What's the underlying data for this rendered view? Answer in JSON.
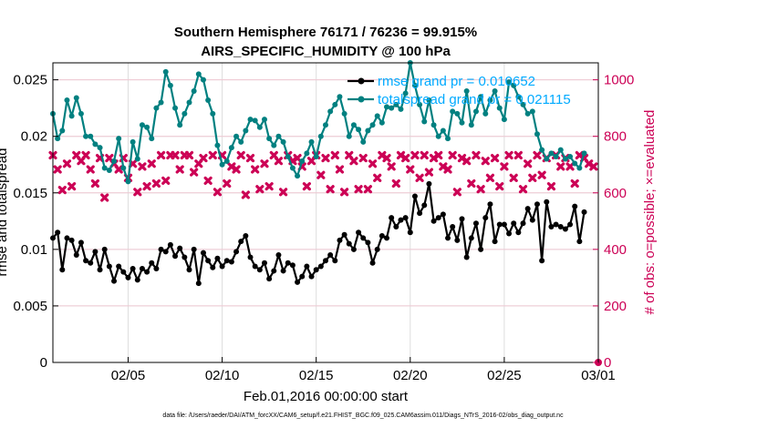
{
  "chart_data": {
    "type": "line",
    "title": [
      "Southern Hemisphere 76171 / 76236 = 99.915%",
      "AIRS_SPECIFIC_HUMIDITY @ 100 hPa"
    ],
    "xlabel": "Feb.01,2016 00:00:00 start",
    "ylabel_left": "rmse and totalspread",
    "ylabel_right": "# of obs: o=possible; ×=evaluated",
    "footer": "data file: /Users/raeder/DAI/ATM_forcXX/CAM6_setup/f.e21.FHIST_BGC.f09_025.CAM6assim.011/Diags_NTrS_2016-02/obs_diag_output.nc",
    "x_domain": [
      1.0,
      30.0
    ],
    "x_ticks": [
      {
        "x": 5,
        "label": "02/05"
      },
      {
        "x": 10,
        "label": "02/10"
      },
      {
        "x": 15,
        "label": "02/15"
      },
      {
        "x": 20,
        "label": "02/20"
      },
      {
        "x": 25,
        "label": "02/25"
      },
      {
        "x": 30,
        "label": "03/01"
      }
    ],
    "ylim_left": [
      0,
      0.0265
    ],
    "yticks_left": [
      {
        "v": 0,
        "label": "0"
      },
      {
        "v": 0.005,
        "label": "0.005"
      },
      {
        "v": 0.01,
        "label": "0.01"
      },
      {
        "v": 0.015,
        "label": "0.015"
      },
      {
        "v": 0.02,
        "label": "0.02"
      },
      {
        "v": 0.025,
        "label": "0.025"
      }
    ],
    "ylim_right": [
      0,
      1060
    ],
    "yticks_right": [
      {
        "v": 0,
        "label": "0"
      },
      {
        "v": 200,
        "label": "200"
      },
      {
        "v": 400,
        "label": "400"
      },
      {
        "v": 600,
        "label": "600"
      },
      {
        "v": 800,
        "label": "800"
      },
      {
        "v": 1000,
        "label": "1000"
      }
    ],
    "grid": true,
    "legend_position": "top-right",
    "series": [
      {
        "name": "rmse grand pr = 0.010652",
        "color": "#000000",
        "marker": "filled-circle",
        "points": [
          [
            1.0,
            0.011
          ],
          [
            1.25,
            0.0115
          ],
          [
            1.5,
            0.0082
          ],
          [
            1.75,
            0.011
          ],
          [
            2.0,
            0.0108
          ],
          [
            2.25,
            0.0095
          ],
          [
            2.5,
            0.0106
          ],
          [
            2.75,
            0.009
          ],
          [
            3.0,
            0.0088
          ],
          [
            3.25,
            0.0098
          ],
          [
            3.5,
            0.0082
          ],
          [
            3.75,
            0.01
          ],
          [
            4.0,
            0.0085
          ],
          [
            4.25,
            0.0072
          ],
          [
            4.5,
            0.0085
          ],
          [
            4.75,
            0.008
          ],
          [
            5.0,
            0.0075
          ],
          [
            5.25,
            0.0083
          ],
          [
            5.5,
            0.0073
          ],
          [
            5.75,
            0.0083
          ],
          [
            6.0,
            0.008
          ],
          [
            6.25,
            0.0088
          ],
          [
            6.5,
            0.0083
          ],
          [
            6.75,
            0.01
          ],
          [
            7.0,
            0.0098
          ],
          [
            7.25,
            0.0104
          ],
          [
            7.5,
            0.0094
          ],
          [
            7.75,
            0.0101
          ],
          [
            8.0,
            0.0093
          ],
          [
            8.25,
            0.0082
          ],
          [
            8.5,
            0.01
          ],
          [
            8.75,
            0.007
          ],
          [
            9.0,
            0.0097
          ],
          [
            9.25,
            0.009
          ],
          [
            9.5,
            0.0084
          ],
          [
            9.75,
            0.0092
          ],
          [
            10.0,
            0.0085
          ],
          [
            10.25,
            0.009
          ],
          [
            10.5,
            0.0089
          ],
          [
            10.75,
            0.0098
          ],
          [
            11.0,
            0.0107
          ],
          [
            11.25,
            0.0112
          ],
          [
            11.5,
            0.0093
          ],
          [
            11.75,
            0.0085
          ],
          [
            12.0,
            0.0082
          ],
          [
            12.25,
            0.0088
          ],
          [
            12.5,
            0.0074
          ],
          [
            12.75,
            0.0081
          ],
          [
            13.0,
            0.0095
          ],
          [
            13.25,
            0.0081
          ],
          [
            13.5,
            0.0088
          ],
          [
            13.75,
            0.0086
          ],
          [
            14.0,
            0.0071
          ],
          [
            14.25,
            0.0076
          ],
          [
            14.5,
            0.0085
          ],
          [
            14.75,
            0.0076
          ],
          [
            15.0,
            0.0082
          ],
          [
            15.25,
            0.0085
          ],
          [
            15.5,
            0.009
          ],
          [
            15.75,
            0.0095
          ],
          [
            16.0,
            0.009
          ],
          [
            16.25,
            0.0108
          ],
          [
            16.5,
            0.0113
          ],
          [
            16.75,
            0.0105
          ],
          [
            17.0,
            0.01
          ],
          [
            17.25,
            0.0115
          ],
          [
            17.5,
            0.011
          ],
          [
            17.75,
            0.0106
          ],
          [
            18.0,
            0.0088
          ],
          [
            18.25,
            0.01
          ],
          [
            18.5,
            0.0112
          ],
          [
            18.75,
            0.011
          ],
          [
            19.0,
            0.0128
          ],
          [
            19.25,
            0.012
          ],
          [
            19.5,
            0.0126
          ],
          [
            19.75,
            0.0128
          ],
          [
            20.0,
            0.0115
          ],
          [
            20.25,
            0.0147
          ],
          [
            20.5,
            0.0132
          ],
          [
            20.75,
            0.0139
          ],
          [
            21.0,
            0.0158
          ],
          [
            21.25,
            0.0125
          ],
          [
            21.5,
            0.0128
          ],
          [
            21.75,
            0.0131
          ],
          [
            22.0,
            0.011
          ],
          [
            22.25,
            0.012
          ],
          [
            22.5,
            0.0108
          ],
          [
            22.75,
            0.0127
          ],
          [
            23.0,
            0.0093
          ],
          [
            23.25,
            0.011
          ],
          [
            23.5,
            0.0123
          ],
          [
            23.75,
            0.01
          ],
          [
            24.0,
            0.0128
          ],
          [
            24.25,
            0.014
          ],
          [
            24.5,
            0.0107
          ],
          [
            24.75,
            0.0122
          ],
          [
            25.0,
            0.0122
          ],
          [
            25.25,
            0.0114
          ],
          [
            25.5,
            0.0123
          ],
          [
            25.75,
            0.0115
          ],
          [
            26.0,
            0.0123
          ],
          [
            26.25,
            0.0136
          ],
          [
            26.5,
            0.0126
          ],
          [
            26.75,
            0.014
          ],
          [
            27.0,
            0.009
          ],
          [
            27.25,
            0.0142
          ],
          [
            27.5,
            0.012
          ],
          [
            27.75,
            0.0122
          ],
          [
            28.0,
            0.012
          ],
          [
            28.25,
            0.0118
          ],
          [
            28.5,
            0.0122
          ],
          [
            28.75,
            0.0138
          ],
          [
            29.0,
            0.0107
          ],
          [
            29.25,
            0.0133
          ]
        ]
      },
      {
        "name": "totalspread grand pr = 0.021115",
        "color": "#008080",
        "marker": "filled-circle",
        "points": [
          [
            1.0,
            0.022
          ],
          [
            1.25,
            0.0198
          ],
          [
            1.5,
            0.0205
          ],
          [
            1.75,
            0.0232
          ],
          [
            2.0,
            0.0218
          ],
          [
            2.25,
            0.0234
          ],
          [
            2.5,
            0.022
          ],
          [
            2.75,
            0.02
          ],
          [
            3.0,
            0.02
          ],
          [
            3.25,
            0.0193
          ],
          [
            3.5,
            0.019
          ],
          [
            3.75,
            0.0172
          ],
          [
            4.0,
            0.017
          ],
          [
            4.25,
            0.0178
          ],
          [
            4.5,
            0.0198
          ],
          [
            4.75,
            0.0172
          ],
          [
            5.0,
            0.016
          ],
          [
            5.25,
            0.0195
          ],
          [
            5.5,
            0.018
          ],
          [
            5.75,
            0.021
          ],
          [
            6.0,
            0.0208
          ],
          [
            6.25,
            0.0198
          ],
          [
            6.5,
            0.0225
          ],
          [
            6.75,
            0.023
          ],
          [
            7.0,
            0.0257
          ],
          [
            7.25,
            0.0245
          ],
          [
            7.5,
            0.0225
          ],
          [
            7.75,
            0.021
          ],
          [
            8.0,
            0.022
          ],
          [
            8.25,
            0.023
          ],
          [
            8.5,
            0.024
          ],
          [
            8.75,
            0.0255
          ],
          [
            9.0,
            0.025
          ],
          [
            9.25,
            0.0232
          ],
          [
            9.5,
            0.022
          ],
          [
            9.75,
            0.0192
          ],
          [
            10.0,
            0.0175
          ],
          [
            10.25,
            0.0178
          ],
          [
            10.5,
            0.019
          ],
          [
            10.75,
            0.02
          ],
          [
            11.0,
            0.0195
          ],
          [
            11.25,
            0.0205
          ],
          [
            11.5,
            0.0215
          ],
          [
            11.75,
            0.0214
          ],
          [
            12.0,
            0.0208
          ],
          [
            12.25,
            0.0215
          ],
          [
            12.5,
            0.0198
          ],
          [
            12.75,
            0.0192
          ],
          [
            13.0,
            0.02
          ],
          [
            13.25,
            0.0195
          ],
          [
            13.5,
            0.0182
          ],
          [
            13.75,
            0.0172
          ],
          [
            14.0,
            0.0165
          ],
          [
            14.25,
            0.0178
          ],
          [
            14.5,
            0.0185
          ],
          [
            14.75,
            0.0195
          ],
          [
            15.0,
            0.0182
          ],
          [
            15.25,
            0.02
          ],
          [
            15.5,
            0.021
          ],
          [
            15.75,
            0.0222
          ],
          [
            16.0,
            0.0228
          ],
          [
            16.25,
            0.0235
          ],
          [
            16.5,
            0.022
          ],
          [
            16.75,
            0.02
          ],
          [
            17.0,
            0.021
          ],
          [
            17.25,
            0.0206
          ],
          [
            17.5,
            0.0195
          ],
          [
            17.75,
            0.0205
          ],
          [
            18.0,
            0.021
          ],
          [
            18.25,
            0.0218
          ],
          [
            18.5,
            0.0212
          ],
          [
            18.75,
            0.0226
          ],
          [
            19.0,
            0.0225
          ],
          [
            19.25,
            0.0228
          ],
          [
            19.5,
            0.0224
          ],
          [
            19.75,
            0.0238
          ],
          [
            20.0,
            0.0265
          ],
          [
            20.25,
            0.0245
          ],
          [
            20.5,
            0.0228
          ],
          [
            20.75,
            0.0213
          ],
          [
            21.0,
            0.0232
          ],
          [
            21.25,
            0.021
          ],
          [
            21.5,
            0.02
          ],
          [
            21.75,
            0.0205
          ],
          [
            22.0,
            0.0198
          ],
          [
            22.25,
            0.0222
          ],
          [
            22.5,
            0.022
          ],
          [
            22.75,
            0.0212
          ],
          [
            23.0,
            0.024
          ],
          [
            23.25,
            0.021
          ],
          [
            23.5,
            0.0222
          ],
          [
            23.75,
            0.0235
          ],
          [
            24.0,
            0.022
          ],
          [
            24.25,
            0.0232
          ],
          [
            24.5,
            0.024
          ],
          [
            24.75,
            0.0225
          ],
          [
            25.0,
            0.0215
          ],
          [
            25.25,
            0.0248
          ],
          [
            25.5,
            0.0245
          ],
          [
            25.75,
            0.0235
          ],
          [
            26.0,
            0.0228
          ],
          [
            26.25,
            0.022
          ],
          [
            26.5,
            0.0222
          ],
          [
            26.75,
            0.0202
          ],
          [
            27.0,
            0.0188
          ],
          [
            27.25,
            0.018
          ],
          [
            27.5,
            0.0185
          ],
          [
            27.75,
            0.0182
          ],
          [
            28.0,
            0.0188
          ],
          [
            28.25,
            0.018
          ],
          [
            28.5,
            0.0182
          ],
          [
            28.75,
            0.0176
          ],
          [
            29.0,
            0.0172
          ],
          [
            29.25,
            0.0185
          ]
        ]
      }
    ],
    "obs_counts": {
      "color": "#cc0055",
      "axis": "right",
      "x_start": 1.0,
      "x_step": 0.25,
      "evaluated": [
        733,
        683,
        610,
        703,
        623,
        733,
        713,
        733,
        683,
        633,
        723,
        583,
        723,
        703,
        683,
        723,
        653,
        703,
        603,
        693,
        623,
        703,
        633,
        733,
        643,
        733,
        733,
        683,
        733,
        733,
        673,
        703,
        723,
        643,
        733,
        603,
        733,
        633,
        693,
        683,
        733,
        593,
        723,
        683,
        613,
        703,
        623,
        733,
        713,
        603,
        733,
        713,
        723,
        693,
        623,
        713,
        733,
        663,
        723,
        613,
        733,
        683,
        603,
        733,
        713,
        613,
        723,
        613,
        703,
        653,
        733,
        723,
        693,
        633,
        733,
        723,
        683,
        733,
        653,
        733,
        673,
        723,
        733,
        693,
        683,
        733,
        603,
        723,
        713,
        633,
        733,
        613,
        713,
        653,
        723,
        623,
        693,
        733,
        653,
        733,
        613,
        703,
        653,
        733,
        663,
        723,
        623,
        733,
        693,
        723,
        693,
        633,
        733,
        723,
        703,
        693
      ],
      "possible_last": {
        "x": 30.0,
        "v": 0
      }
    }
  },
  "colors": {
    "rmse": "#000000",
    "spread": "#008080",
    "obs": "#cc0055",
    "legend_text": "#00aaff",
    "grid": "#dddddd",
    "hline": "#f0c8d4"
  }
}
